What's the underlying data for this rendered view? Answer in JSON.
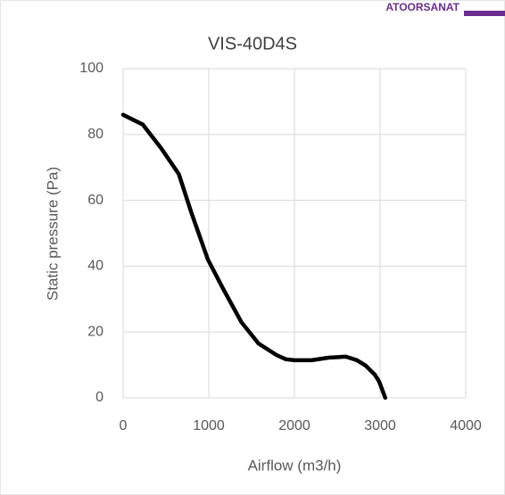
{
  "logo": "ATOORSANAT",
  "chart_data": {
    "type": "line",
    "title": "VIS-40D4S",
    "x_label": "Airflow (m3/h)",
    "y_label": "Static pressure (Pa)",
    "x": [
      0,
      230,
      440,
      650,
      800,
      990,
      1170,
      1380,
      1580,
      1790,
      1900,
      2000,
      2200,
      2400,
      2600,
      2730,
      2830,
      2940,
      2990,
      3060
    ],
    "values": [
      86,
      83,
      76,
      68,
      56,
      42,
      33,
      23,
      16.5,
      13,
      11.7,
      11.4,
      11.4,
      12.2,
      12.5,
      11.4,
      9.8,
      7,
      4.9,
      0
    ],
    "color": "#000000",
    "xlim": [
      0,
      4000
    ],
    "xticks": [
      0,
      1000,
      2000,
      3000,
      4000
    ],
    "ylim": [
      0,
      100
    ],
    "yticks": [
      0,
      20,
      40,
      60,
      80,
      100
    ],
    "grid": true
  }
}
